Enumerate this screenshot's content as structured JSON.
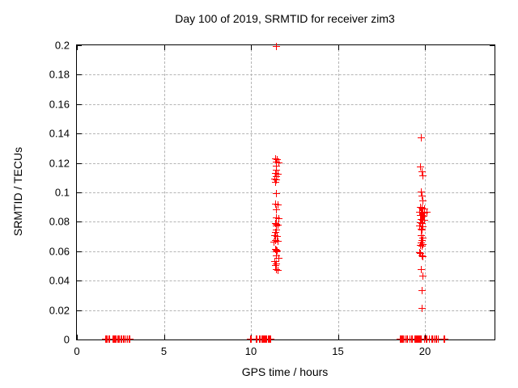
{
  "title": "Day 100 of 2019, SRMTID for receiver zim3",
  "colors": {
    "marker": "#ff0000",
    "grid": "#b4b4b4",
    "border": "#000000",
    "background": "#ffffff",
    "text": "#000000"
  },
  "chart_data": {
    "type": "scatter",
    "title": "Day 100 of 2019, SRMTID for receiver zim3",
    "xlabel": "GPS time / hours",
    "ylabel": "SRMTID / TECUs",
    "xlim": [
      0,
      24
    ],
    "ylim": [
      0,
      0.2
    ],
    "x_ticks": [
      0,
      5,
      10,
      15,
      20
    ],
    "y_ticks": [
      0,
      0.02,
      0.04,
      0.06,
      0.08,
      0.1,
      0.12,
      0.14,
      0.16,
      0.18,
      0.2
    ],
    "grid": true,
    "legend_position": "none",
    "marker": "plus",
    "series": [
      {
        "name": "SRMTID",
        "color": "#ff0000",
        "points": [
          [
            1.68,
            0
          ],
          [
            1.73,
            0
          ],
          [
            1.78,
            0
          ],
          [
            1.88,
            0
          ],
          [
            1.93,
            0
          ],
          [
            2.07,
            0
          ],
          [
            2.12,
            0
          ],
          [
            2.18,
            0
          ],
          [
            2.24,
            0
          ],
          [
            2.3,
            0
          ],
          [
            2.36,
            0
          ],
          [
            2.42,
            0
          ],
          [
            2.48,
            0
          ],
          [
            2.54,
            0
          ],
          [
            2.6,
            0
          ],
          [
            2.7,
            0
          ],
          [
            2.76,
            0
          ],
          [
            2.82,
            0
          ],
          [
            2.95,
            0
          ],
          [
            3.0,
            0
          ],
          [
            3.05,
            0
          ],
          [
            9.98,
            0
          ],
          [
            10.04,
            0
          ],
          [
            10.33,
            0
          ],
          [
            10.39,
            0
          ],
          [
            10.5,
            0
          ],
          [
            10.56,
            0
          ],
          [
            10.65,
            0
          ],
          [
            10.7,
            0
          ],
          [
            10.75,
            0
          ],
          [
            10.8,
            0
          ],
          [
            10.85,
            0
          ],
          [
            10.9,
            0
          ],
          [
            10.95,
            0
          ],
          [
            11.0,
            0
          ],
          [
            11.05,
            0
          ],
          [
            11.1,
            0
          ],
          [
            11.16,
            0
          ],
          [
            18.62,
            0
          ],
          [
            18.66,
            0
          ],
          [
            18.7,
            0
          ],
          [
            18.74,
            0
          ],
          [
            18.78,
            0
          ],
          [
            18.9,
            0
          ],
          [
            18.96,
            0
          ],
          [
            19.02,
            0
          ],
          [
            19.18,
            0
          ],
          [
            19.24,
            0
          ],
          [
            19.32,
            0
          ],
          [
            19.42,
            0
          ],
          [
            19.46,
            0
          ],
          [
            19.5,
            0
          ],
          [
            19.54,
            0
          ],
          [
            19.58,
            0
          ],
          [
            19.62,
            0
          ],
          [
            19.66,
            0
          ],
          [
            19.7,
            0
          ],
          [
            19.74,
            0
          ],
          [
            19.78,
            0
          ],
          [
            19.82,
            0
          ],
          [
            20.0,
            0
          ],
          [
            20.08,
            0
          ],
          [
            20.16,
            0
          ],
          [
            20.3,
            0
          ],
          [
            20.42,
            0
          ],
          [
            20.48,
            0
          ],
          [
            20.56,
            0
          ],
          [
            20.64,
            0
          ],
          [
            20.72,
            0
          ],
          [
            20.8,
            0
          ],
          [
            21.1,
            0
          ],
          [
            21.16,
            0
          ],
          [
            11.5,
            0.199
          ],
          [
            11.45,
            0.1225
          ],
          [
            11.55,
            0.122
          ],
          [
            11.5,
            0.1205
          ],
          [
            11.62,
            0.12
          ],
          [
            11.5,
            0.1175
          ],
          [
            11.5,
            0.115
          ],
          [
            11.45,
            0.1125
          ],
          [
            11.56,
            0.112
          ],
          [
            11.5,
            0.1105
          ],
          [
            11.4,
            0.109
          ],
          [
            11.5,
            0.108
          ],
          [
            11.46,
            0.1065
          ],
          [
            11.5,
            0.099
          ],
          [
            11.46,
            0.092
          ],
          [
            11.56,
            0.091
          ],
          [
            11.5,
            0.088
          ],
          [
            11.5,
            0.0825
          ],
          [
            11.62,
            0.082
          ],
          [
            11.42,
            0.0785
          ],
          [
            11.5,
            0.078
          ],
          [
            11.56,
            0.0775
          ],
          [
            11.48,
            0.077
          ],
          [
            11.5,
            0.074
          ],
          [
            11.45,
            0.0725
          ],
          [
            11.4,
            0.0705
          ],
          [
            11.52,
            0.07
          ],
          [
            11.45,
            0.067
          ],
          [
            11.56,
            0.0665
          ],
          [
            11.36,
            0.066
          ],
          [
            11.42,
            0.061
          ],
          [
            11.48,
            0.0605
          ],
          [
            11.54,
            0.06
          ],
          [
            11.5,
            0.0595
          ],
          [
            11.5,
            0.0565
          ],
          [
            11.62,
            0.055
          ],
          [
            11.4,
            0.0525
          ],
          [
            11.5,
            0.051
          ],
          [
            11.46,
            0.05
          ],
          [
            11.5,
            0.047
          ],
          [
            11.56,
            0.0465
          ],
          [
            19.8,
            0.137
          ],
          [
            19.76,
            0.117
          ],
          [
            19.86,
            0.114
          ],
          [
            19.92,
            0.111
          ],
          [
            19.8,
            0.1
          ],
          [
            19.86,
            0.097
          ],
          [
            19.92,
            0.094
          ],
          [
            19.76,
            0.0895
          ],
          [
            19.88,
            0.089
          ],
          [
            19.98,
            0.0885
          ],
          [
            19.7,
            0.0865
          ],
          [
            19.8,
            0.086
          ],
          [
            19.9,
            0.0858
          ],
          [
            20.02,
            0.0855
          ],
          [
            20.12,
            0.086
          ],
          [
            19.76,
            0.084
          ],
          [
            19.86,
            0.0838
          ],
          [
            19.96,
            0.0835
          ],
          [
            19.8,
            0.0815
          ],
          [
            19.9,
            0.081
          ],
          [
            20.0,
            0.0805
          ],
          [
            19.76,
            0.079
          ],
          [
            19.86,
            0.0785
          ],
          [
            19.7,
            0.077
          ],
          [
            19.9,
            0.0765
          ],
          [
            19.82,
            0.075
          ],
          [
            19.88,
            0.074
          ],
          [
            19.8,
            0.0705
          ],
          [
            19.9,
            0.0685
          ],
          [
            19.86,
            0.067
          ],
          [
            19.8,
            0.0652
          ],
          [
            19.9,
            0.0645
          ],
          [
            19.76,
            0.0635
          ],
          [
            19.86,
            0.063
          ],
          [
            19.72,
            0.0588
          ],
          [
            19.78,
            0.058
          ],
          [
            19.84,
            0.0565
          ],
          [
            19.9,
            0.056
          ],
          [
            19.8,
            0.0475
          ],
          [
            19.92,
            0.043
          ],
          [
            19.86,
            0.033
          ],
          [
            19.86,
            0.021
          ]
        ]
      }
    ]
  }
}
